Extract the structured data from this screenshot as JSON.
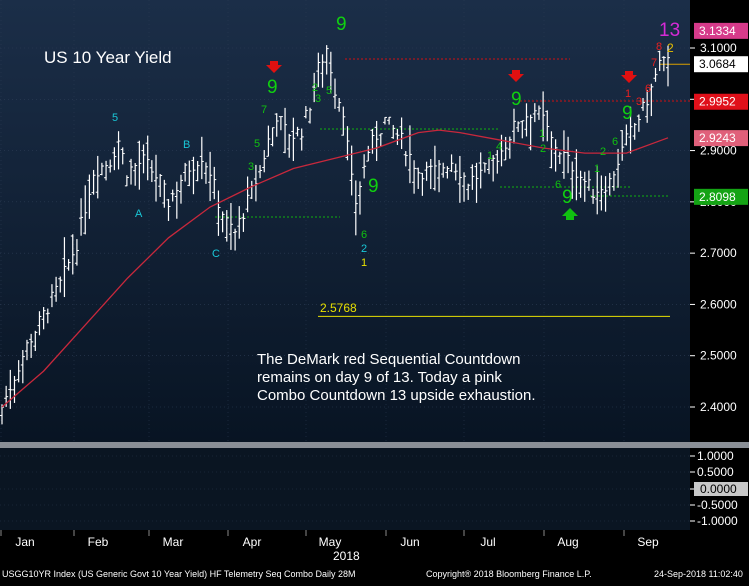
{
  "chart_data": {
    "type": "candlestick-bar",
    "title": "US 10 Year Yield",
    "annotation_lines": [
      "The DeMark red Sequential Countdown",
      "remains on day 9 of 13. Today a pink",
      "Combo Countdown 13 upside exhaustion."
    ],
    "ylim": [
      2.33,
      3.17
    ],
    "y_ticks": [
      "3.1000",
      "3.0000",
      "2.9000",
      "2.8000",
      "2.7000",
      "2.6000",
      "2.5000",
      "2.4000"
    ],
    "x_months": [
      "Jan",
      "Feb",
      "Mar",
      "Apr",
      "May",
      "Jun",
      "Jul",
      "Aug",
      "Sep"
    ],
    "x_year": "2018",
    "ohlc_key_points": [
      [
        0,
        2.4
      ],
      [
        6,
        2.52
      ],
      [
        10,
        2.58
      ],
      [
        14,
        2.64
      ],
      [
        18,
        2.72
      ],
      [
        22,
        2.86
      ],
      [
        26,
        2.88
      ],
      [
        28,
        2.92
      ],
      [
        30,
        2.86
      ],
      [
        34,
        2.88
      ],
      [
        38,
        2.84
      ],
      [
        40,
        2.8
      ],
      [
        44,
        2.86
      ],
      [
        48,
        2.89
      ],
      [
        50,
        2.86
      ],
      [
        52,
        2.8
      ],
      [
        54,
        2.76
      ],
      [
        56,
        2.74
      ],
      [
        58,
        2.78
      ],
      [
        60,
        2.82
      ],
      [
        62,
        2.86
      ],
      [
        64,
        2.92
      ],
      [
        66,
        2.97
      ],
      [
        68,
        2.94
      ],
      [
        70,
        2.93
      ],
      [
        72,
        2.94
      ],
      [
        74,
        2.99
      ],
      [
        76,
        3.06
      ],
      [
        78,
        3.1
      ],
      [
        80,
        3.02
      ],
      [
        82,
        2.98
      ],
      [
        84,
        2.84
      ],
      [
        85,
        2.8
      ],
      [
        88,
        2.9
      ],
      [
        92,
        2.96
      ],
      [
        96,
        2.92
      ],
      [
        100,
        2.86
      ],
      [
        104,
        2.86
      ],
      [
        108,
        2.88
      ],
      [
        112,
        2.84
      ],
      [
        116,
        2.86
      ],
      [
        120,
        2.9
      ],
      [
        124,
        2.96
      ],
      [
        128,
        2.98
      ],
      [
        130,
        2.96
      ],
      [
        132,
        2.92
      ],
      [
        134,
        2.9
      ],
      [
        138,
        2.86
      ],
      [
        142,
        2.82
      ],
      [
        146,
        2.84
      ],
      [
        150,
        2.92
      ],
      [
        154,
        2.98
      ],
      [
        156,
        3.02
      ],
      [
        158,
        3.07
      ],
      [
        160,
        3.07
      ]
    ],
    "moving_average": [
      [
        0,
        2.4
      ],
      [
        10,
        2.47
      ],
      [
        20,
        2.56
      ],
      [
        30,
        2.65
      ],
      [
        40,
        2.73
      ],
      [
        50,
        2.79
      ],
      [
        60,
        2.83
      ],
      [
        70,
        2.865
      ],
      [
        80,
        2.885
      ],
      [
        90,
        2.905
      ],
      [
        100,
        2.935
      ],
      [
        105,
        2.94
      ],
      [
        110,
        2.935
      ],
      [
        120,
        2.92
      ],
      [
        130,
        2.905
      ],
      [
        140,
        2.895
      ],
      [
        150,
        2.895
      ],
      [
        160,
        2.925
      ]
    ],
    "price_labels": [
      {
        "text": "3.1334",
        "value": 3.1334,
        "color": "#d63a8a"
      },
      {
        "text": "3.0684",
        "value": 3.0684,
        "color": "#ffffff"
      },
      {
        "text": "2.9952",
        "value": 2.9952,
        "color": "#e0101a"
      },
      {
        "text": "2.9243",
        "value": 2.9243,
        "color": "#e0607a"
      },
      {
        "text": "2.8098",
        "value": 2.8098,
        "color": "#14a314"
      }
    ],
    "levels": [
      {
        "value": 2.5768,
        "label": "2.5768",
        "color": "#e8e000"
      },
      {
        "value": 3.0684,
        "color": "#d9a000"
      }
    ],
    "lower_panel": {
      "y_ticks": [
        "1.0000",
        "0.5000",
        "0.0000",
        "-0.5000",
        "-1.0000"
      ],
      "current_value": "0.0000"
    },
    "footer": {
      "left": "USGG10YR Index (US Generic Govt 10 Year Yield) HF Telemetry Seq Combo  Daily 28M",
      "center": "Copyright® 2018 Bloomberg Finance L.P.",
      "right": "24-Sep-2018 11:02:40"
    }
  }
}
